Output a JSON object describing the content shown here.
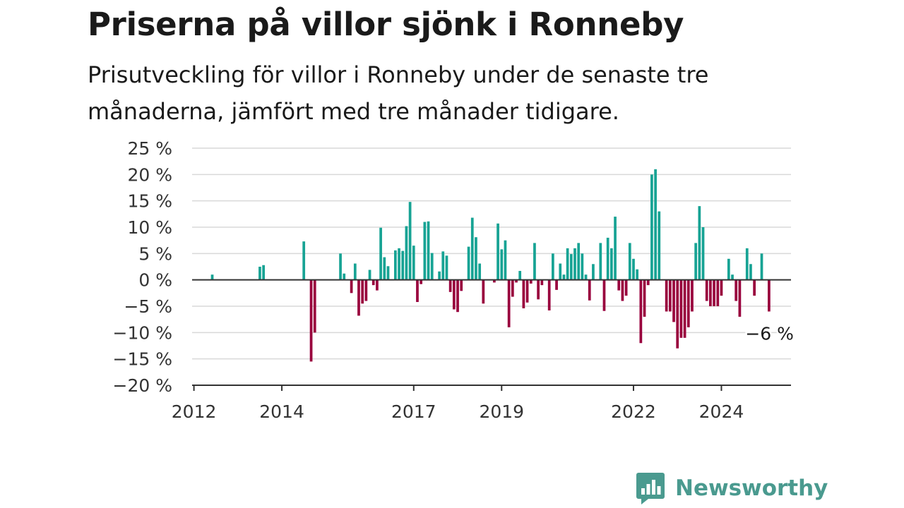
{
  "header": {
    "title": "Priserna på villor sjönk i Ronneby",
    "subtitle": "Prisutveckling för villor i Ronneby under de senaste tre månaderna, jämfört med tre månader tidigare."
  },
  "brand": {
    "name": "Newsworthy",
    "logo_icon": "bar-chart-speech-bubble-icon"
  },
  "colors": {
    "positive": "#17a394",
    "negative": "#99003d",
    "grid": "#d9d9d9",
    "axis": "#333333",
    "brand": "#4a9a8f"
  },
  "chart_data": {
    "type": "bar",
    "x_ticks": [
      "2012",
      "2014",
      "2017",
      "2019",
      "2022",
      "2024"
    ],
    "y_ticks": [
      "25 %",
      "20 %",
      "15 %",
      "10 %",
      "5 %",
      "0 %",
      "−5 %",
      "−10 %",
      "−15 %",
      "−20 %"
    ],
    "ylim": [
      -20,
      25
    ],
    "grid": true,
    "annotation": {
      "text": "−6 %",
      "value": -6
    },
    "series": [
      {
        "values": [
          {
            "x": "2012-06",
            "y": 1
          },
          {
            "x": "2013-07",
            "y": 2.5
          },
          {
            "x": "2013-08",
            "y": 2.8
          },
          {
            "x": "2014-07",
            "y": 7.3
          },
          {
            "x": "2014-09",
            "y": -15.5
          },
          {
            "x": "2014-10",
            "y": -10
          },
          {
            "x": "2015-05",
            "y": 5
          },
          {
            "x": "2015-06",
            "y": 1.2
          },
          {
            "x": "2015-08",
            "y": -2.5
          },
          {
            "x": "2015-09",
            "y": 3.1
          },
          {
            "x": "2015-10",
            "y": -6.8
          },
          {
            "x": "2015-11",
            "y": -4.5
          },
          {
            "x": "2015-12",
            "y": -4
          },
          {
            "x": "2016-01",
            "y": 1.9
          },
          {
            "x": "2016-02",
            "y": -1
          },
          {
            "x": "2016-03",
            "y": -2
          },
          {
            "x": "2016-04",
            "y": 9.9
          },
          {
            "x": "2016-05",
            "y": 4.3
          },
          {
            "x": "2016-06",
            "y": 2.6
          },
          {
            "x": "2016-08",
            "y": 5.6
          },
          {
            "x": "2016-09",
            "y": 6
          },
          {
            "x": "2016-10",
            "y": 5.5
          },
          {
            "x": "2016-11",
            "y": 10.2
          },
          {
            "x": "2016-12",
            "y": 14.8
          },
          {
            "x": "2017-01",
            "y": 6.5
          },
          {
            "x": "2017-02",
            "y": -4.2
          },
          {
            "x": "2017-03",
            "y": -0.8
          },
          {
            "x": "2017-04",
            "y": 11
          },
          {
            "x": "2017-05",
            "y": 11.1
          },
          {
            "x": "2017-06",
            "y": 5.1
          },
          {
            "x": "2017-08",
            "y": 1.6
          },
          {
            "x": "2017-09",
            "y": 5.4
          },
          {
            "x": "2017-10",
            "y": 4.6
          },
          {
            "x": "2017-11",
            "y": -2.3
          },
          {
            "x": "2017-12",
            "y": -5.6
          },
          {
            "x": "2018-01",
            "y": -6.1
          },
          {
            "x": "2018-02",
            "y": -2.1
          },
          {
            "x": "2018-04",
            "y": 6.3
          },
          {
            "x": "2018-05",
            "y": 11.8
          },
          {
            "x": "2018-06",
            "y": 8.1
          },
          {
            "x": "2018-07",
            "y": 3.1
          },
          {
            "x": "2018-08",
            "y": -4.5
          },
          {
            "x": "2018-11",
            "y": -0.5
          },
          {
            "x": "2018-12",
            "y": 10.7
          },
          {
            "x": "2019-01",
            "y": 5.8
          },
          {
            "x": "2019-02",
            "y": 7.5
          },
          {
            "x": "2019-03",
            "y": -9
          },
          {
            "x": "2019-04",
            "y": -3.2
          },
          {
            "x": "2019-05",
            "y": -0.5
          },
          {
            "x": "2019-06",
            "y": 1.7
          },
          {
            "x": "2019-07",
            "y": -5.4
          },
          {
            "x": "2019-08",
            "y": -4.3
          },
          {
            "x": "2019-09",
            "y": -0.7
          },
          {
            "x": "2019-10",
            "y": 7
          },
          {
            "x": "2019-11",
            "y": -3.7
          },
          {
            "x": "2019-12",
            "y": -1
          },
          {
            "x": "2020-02",
            "y": -5.8
          },
          {
            "x": "2020-03",
            "y": 5
          },
          {
            "x": "2020-04",
            "y": -1.9
          },
          {
            "x": "2020-05",
            "y": 3.1
          },
          {
            "x": "2020-06",
            "y": 1
          },
          {
            "x": "2020-07",
            "y": 6
          },
          {
            "x": "2020-08",
            "y": 4.9
          },
          {
            "x": "2020-09",
            "y": 6
          },
          {
            "x": "2020-10",
            "y": 7
          },
          {
            "x": "2020-11",
            "y": 5
          },
          {
            "x": "2020-12",
            "y": 1
          },
          {
            "x": "2021-01",
            "y": -3.9
          },
          {
            "x": "2021-02",
            "y": 3
          },
          {
            "x": "2021-04",
            "y": 7
          },
          {
            "x": "2021-05",
            "y": -5.9
          },
          {
            "x": "2021-06",
            "y": 8
          },
          {
            "x": "2021-07",
            "y": 6
          },
          {
            "x": "2021-08",
            "y": 12
          },
          {
            "x": "2021-09",
            "y": -2
          },
          {
            "x": "2021-10",
            "y": -4
          },
          {
            "x": "2021-11",
            "y": -3
          },
          {
            "x": "2021-12",
            "y": 7
          },
          {
            "x": "2022-01",
            "y": 4
          },
          {
            "x": "2022-02",
            "y": 2
          },
          {
            "x": "2022-03",
            "y": -12
          },
          {
            "x": "2022-04",
            "y": -7
          },
          {
            "x": "2022-05",
            "y": -1
          },
          {
            "x": "2022-06",
            "y": 20
          },
          {
            "x": "2022-07",
            "y": 21
          },
          {
            "x": "2022-08",
            "y": 13
          },
          {
            "x": "2022-10",
            "y": -6
          },
          {
            "x": "2022-11",
            "y": -6
          },
          {
            "x": "2022-12",
            "y": -8
          },
          {
            "x": "2023-01",
            "y": -13
          },
          {
            "x": "2023-02",
            "y": -11
          },
          {
            "x": "2023-03",
            "y": -11
          },
          {
            "x": "2023-04",
            "y": -9
          },
          {
            "x": "2023-05",
            "y": -6
          },
          {
            "x": "2023-06",
            "y": 7
          },
          {
            "x": "2023-07",
            "y": 14
          },
          {
            "x": "2023-08",
            "y": 10
          },
          {
            "x": "2023-09",
            "y": -4
          },
          {
            "x": "2023-10",
            "y": -5
          },
          {
            "x": "2023-11",
            "y": -5
          },
          {
            "x": "2023-12",
            "y": -5
          },
          {
            "x": "2024-01",
            "y": -3
          },
          {
            "x": "2024-03",
            "y": 4
          },
          {
            "x": "2024-04",
            "y": 1
          },
          {
            "x": "2024-05",
            "y": -4
          },
          {
            "x": "2024-06",
            "y": -7
          },
          {
            "x": "2024-08",
            "y": 6
          },
          {
            "x": "2024-09",
            "y": 3
          },
          {
            "x": "2024-10",
            "y": -3
          },
          {
            "x": "2024-12",
            "y": 5
          },
          {
            "x": "2025-02",
            "y": -6
          }
        ]
      }
    ]
  }
}
